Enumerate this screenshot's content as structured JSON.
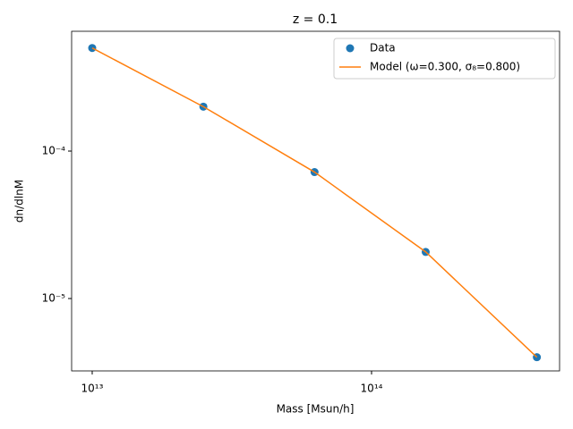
{
  "chart_data": {
    "type": "line",
    "title": "z = 0.1",
    "x_label": "Mass [Msun/h]",
    "y_label": "dn/dlnM",
    "x": [
      10000000000000.0,
      25000000000000.0,
      62500000000000.0,
      156250000000000.0,
      390625000000000.0
    ],
    "series": [
      {
        "name": "Data",
        "color": "#1f77b4",
        "style": "marker",
        "values": [
          0.0005,
          0.0002,
          7.2e-05,
          2.07e-05,
          4e-06
        ]
      },
      {
        "name": "Model (ω=0.300, σ₈=0.800)",
        "color": "#ff7f0e",
        "style": "line",
        "values": [
          0.0005,
          0.0002,
          7.2e-05,
          2.07e-05,
          4e-06
        ]
      }
    ],
    "xscale": "log",
    "yscale": "log",
    "xlim": [
      8440000000000.0,
      471000000000000.0
    ],
    "ylim": [
      3.23e-06,
      0.000649
    ],
    "xticks": [
      {
        "value": 10000000000000.0,
        "label": "10¹³"
      },
      {
        "value": 100000000000000.0,
        "label": "10¹⁴"
      }
    ],
    "yticks": [
      {
        "value": 1e-05,
        "label": "10⁻⁵"
      },
      {
        "value": 0.0001,
        "label": "10⁻⁴"
      }
    ],
    "legend": "upper right",
    "grid": false
  }
}
